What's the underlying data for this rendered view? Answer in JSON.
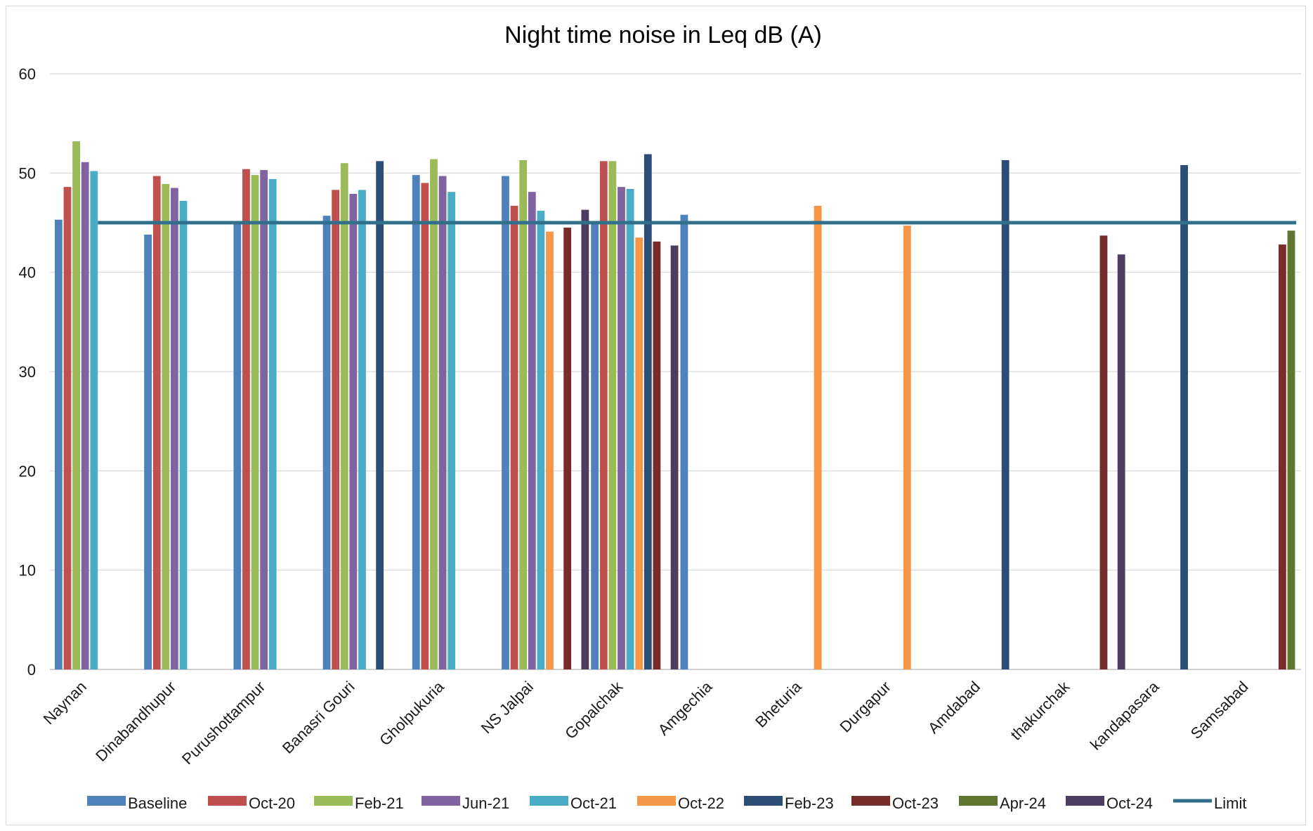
{
  "chart_data": {
    "type": "bar",
    "title": "Night time noise in Leq dB (A)",
    "xlabel": "",
    "ylabel": "",
    "ylim": [
      0,
      60
    ],
    "yticks": [
      0,
      10,
      20,
      30,
      40,
      50,
      60
    ],
    "grid": true,
    "legend_position": "bottom",
    "categories": [
      "Naynan",
      "Dinabandhupur",
      "Purushottampur",
      "Banasri Gouri",
      "Gholpukuria",
      "NS Jalpai",
      "Gopalchak",
      "Amgechia",
      "Bheturia",
      "Durgapur",
      "Amdabad",
      "thakurchak",
      "kandapasara",
      "Samsabad"
    ],
    "series": [
      {
        "name": "Baseline",
        "color": "#4f81bd",
        "values": [
          45.3,
          43.8,
          45.0,
          45.7,
          49.8,
          49.7,
          45.0,
          45.8,
          null,
          null,
          null,
          null,
          null,
          null
        ]
      },
      {
        "name": "Oct-20",
        "color": "#c0504d",
        "values": [
          48.6,
          49.7,
          50.4,
          48.3,
          49.0,
          46.7,
          51.2,
          null,
          null,
          null,
          null,
          null,
          null,
          null
        ]
      },
      {
        "name": "Feb-21",
        "color": "#9bbb59",
        "values": [
          53.2,
          48.9,
          49.8,
          51.0,
          51.4,
          51.3,
          51.2,
          null,
          null,
          null,
          null,
          null,
          null,
          null
        ]
      },
      {
        "name": "Jun-21",
        "color": "#8064a2",
        "values": [
          51.1,
          48.5,
          50.3,
          47.9,
          49.7,
          48.1,
          48.6,
          null,
          null,
          null,
          null,
          null,
          null,
          null
        ]
      },
      {
        "name": "Oct-21",
        "color": "#4bacc6",
        "values": [
          50.2,
          47.2,
          49.4,
          48.3,
          48.1,
          46.2,
          48.4,
          null,
          null,
          null,
          null,
          null,
          null,
          null
        ]
      },
      {
        "name": "Oct-22",
        "color": "#f79646",
        "values": [
          null,
          null,
          null,
          null,
          null,
          44.1,
          43.5,
          null,
          46.7,
          44.7,
          null,
          null,
          null,
          null
        ]
      },
      {
        "name": "Feb-23",
        "color": "#2c4d75",
        "values": [
          null,
          null,
          null,
          51.2,
          null,
          null,
          51.9,
          null,
          null,
          null,
          51.3,
          null,
          50.8,
          null
        ]
      },
      {
        "name": "Oct-23",
        "color": "#772c2a",
        "values": [
          null,
          null,
          null,
          null,
          null,
          44.5,
          43.1,
          null,
          null,
          null,
          null,
          43.7,
          null,
          42.8
        ]
      },
      {
        "name": "Apr-24",
        "color": "#5f7530",
        "values": [
          null,
          null,
          null,
          null,
          null,
          null,
          null,
          null,
          null,
          null,
          null,
          null,
          null,
          44.2
        ]
      },
      {
        "name": "Oct-24",
        "color": "#4d3b62",
        "values": [
          null,
          null,
          null,
          null,
          null,
          46.3,
          42.7,
          null,
          null,
          null,
          null,
          41.8,
          null,
          null
        ]
      }
    ],
    "limit": {
      "name": "Limit",
      "value": 45,
      "color": "#31708a"
    }
  }
}
